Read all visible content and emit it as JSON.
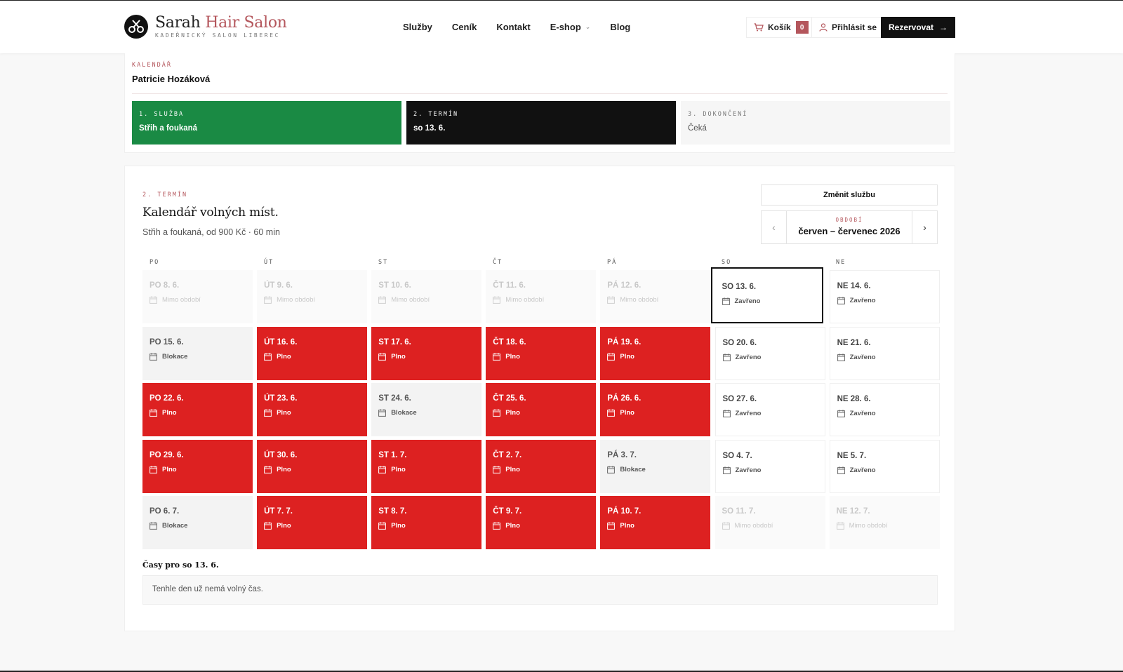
{
  "brand": {
    "title_main": "Sarah ",
    "title_accent": "Hair Salon",
    "subtitle": "KADEŘNICKÝ SALON LIBEREC",
    "accent_color": "#b4565c"
  },
  "nav": {
    "items": [
      "Služby",
      "Ceník",
      "Kontakt",
      "E-shop",
      "Blog"
    ],
    "dropdown_index": 3
  },
  "header_actions": {
    "cart_label": "Košík",
    "cart_count": "0",
    "login_label": "Přihlásit se",
    "reserve_label": "Rezervovat"
  },
  "booking": {
    "section_label": "KALENDÁŘ",
    "person": "Patricie Hozáková",
    "steps": [
      {
        "label": "1. SLUŽBA",
        "value": "Střih a foukaná",
        "state": "done"
      },
      {
        "label": "2. TERMÍN",
        "value": "so 13. 6.",
        "state": "active"
      },
      {
        "label": "3. DOKONČENÍ",
        "value": "Čeká",
        "state": "pending"
      }
    ]
  },
  "calendar": {
    "section_label": "2. TERMÍN",
    "title": "Kalendář volných míst.",
    "subtitle": "Střih a foukaná, od 900 Kč · 60 min",
    "change_service_label": "Změnit službu",
    "period_label": "OBDOBÍ",
    "period_value": "červen – červenec 2026",
    "weekdays": [
      "PO",
      "ÚT",
      "ST",
      "ČT",
      "PÁ",
      "SO",
      "NE"
    ],
    "weeks": [
      [
        {
          "date": "PO 8. 6.",
          "status": "Mimo období",
          "type": "out"
        },
        {
          "date": "ÚT 9. 6.",
          "status": "Mimo období",
          "type": "out"
        },
        {
          "date": "ST 10. 6.",
          "status": "Mimo období",
          "type": "out"
        },
        {
          "date": "ČT 11. 6.",
          "status": "Mimo období",
          "type": "out"
        },
        {
          "date": "PÁ 12. 6.",
          "status": "Mimo období",
          "type": "out"
        },
        {
          "date": "SO 13. 6.",
          "status": "Zavřeno",
          "type": "closed",
          "selected": true
        },
        {
          "date": "NE 14. 6.",
          "status": "Zavřeno",
          "type": "closed"
        }
      ],
      [
        {
          "date": "PO 15. 6.",
          "status": "Blokace",
          "type": "block"
        },
        {
          "date": "ÚT 16. 6.",
          "status": "Plno",
          "type": "full"
        },
        {
          "date": "ST 17. 6.",
          "status": "Plno",
          "type": "full"
        },
        {
          "date": "ČT 18. 6.",
          "status": "Plno",
          "type": "full"
        },
        {
          "date": "PÁ 19. 6.",
          "status": "Plno",
          "type": "full"
        },
        {
          "date": "SO 20. 6.",
          "status": "Zavřeno",
          "type": "closed"
        },
        {
          "date": "NE 21. 6.",
          "status": "Zavřeno",
          "type": "closed"
        }
      ],
      [
        {
          "date": "PO 22. 6.",
          "status": "Plno",
          "type": "full"
        },
        {
          "date": "ÚT 23. 6.",
          "status": "Plno",
          "type": "full"
        },
        {
          "date": "ST 24. 6.",
          "status": "Blokace",
          "type": "block"
        },
        {
          "date": "ČT 25. 6.",
          "status": "Plno",
          "type": "full"
        },
        {
          "date": "PÁ 26. 6.",
          "status": "Plno",
          "type": "full"
        },
        {
          "date": "SO 27. 6.",
          "status": "Zavřeno",
          "type": "closed"
        },
        {
          "date": "NE 28. 6.",
          "status": "Zavřeno",
          "type": "closed"
        }
      ],
      [
        {
          "date": "PO 29. 6.",
          "status": "Plno",
          "type": "full"
        },
        {
          "date": "ÚT 30. 6.",
          "status": "Plno",
          "type": "full"
        },
        {
          "date": "ST 1. 7.",
          "status": "Plno",
          "type": "full"
        },
        {
          "date": "ČT 2. 7.",
          "status": "Plno",
          "type": "full"
        },
        {
          "date": "PÁ 3. 7.",
          "status": "Blokace",
          "type": "block"
        },
        {
          "date": "SO 4. 7.",
          "status": "Zavřeno",
          "type": "closed"
        },
        {
          "date": "NE 5. 7.",
          "status": "Zavřeno",
          "type": "closed"
        }
      ],
      [
        {
          "date": "PO 6. 7.",
          "status": "Blokace",
          "type": "block"
        },
        {
          "date": "ÚT 7. 7.",
          "status": "Plno",
          "type": "full"
        },
        {
          "date": "ST 8. 7.",
          "status": "Plno",
          "type": "full"
        },
        {
          "date": "ČT 9. 7.",
          "status": "Plno",
          "type": "full"
        },
        {
          "date": "PÁ 10. 7.",
          "status": "Plno",
          "type": "full"
        },
        {
          "date": "SO 11. 7.",
          "status": "Mimo období",
          "type": "out"
        },
        {
          "date": "NE 12. 7.",
          "status": "Mimo období",
          "type": "out"
        }
      ]
    ],
    "colors": {
      "full": "#dd2121",
      "block": "#f3f3f3",
      "done_step": "#1a8a44"
    }
  },
  "times": {
    "title": "Časy pro so 13. 6.",
    "empty_message": "Tenhle den už nemá volný čas."
  }
}
